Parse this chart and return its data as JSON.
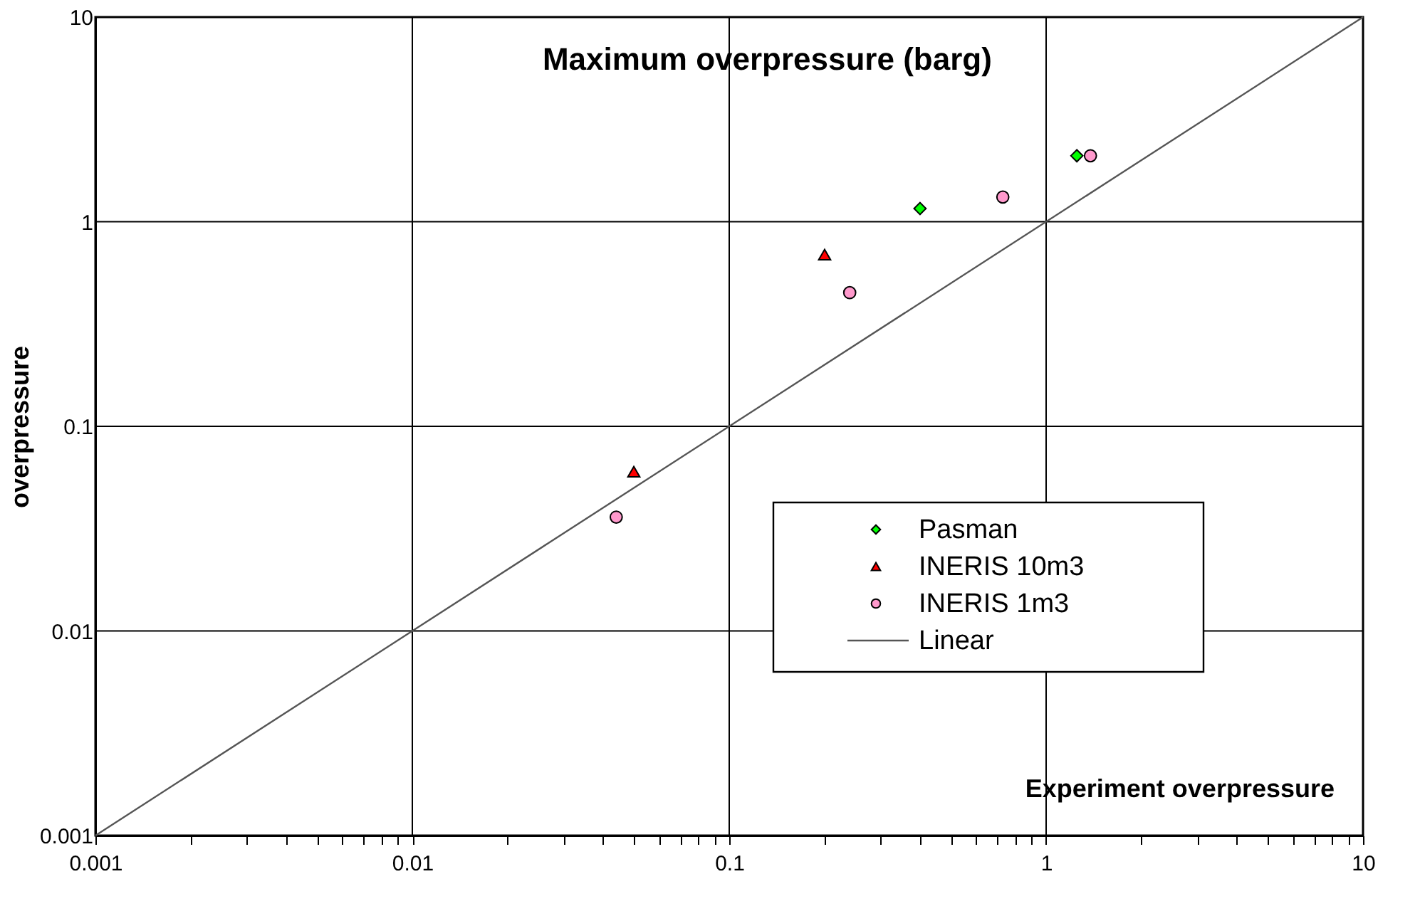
{
  "chart_data": {
    "type": "scatter",
    "title": "Maximum overpressure (barg)",
    "xlabel": "Experiment overpressure",
    "ylabel": "overpressure",
    "xlim": [
      0.001,
      10
    ],
    "ylim": [
      0.001,
      10
    ],
    "xticks": [
      0.001,
      {
        "value": 0.002,
        "label": null
      },
      {
        "value": 0.003,
        "label": null
      },
      {
        "value": 0.004,
        "label": null
      },
      {
        "value": 0.005,
        "label": null
      },
      {
        "value": 0.006,
        "label": null
      },
      {
        "value": 0.007,
        "label": null
      },
      {
        "value": 0.008,
        "label": null
      },
      {
        "value": 0.009,
        "label": null
      },
      0.01,
      {
        "value": 0.02,
        "label": null
      },
      {
        "value": 0.03,
        "label": null
      },
      {
        "value": 0.04,
        "label": null
      },
      {
        "value": 0.05,
        "label": null
      },
      {
        "value": 0.06,
        "label": null
      },
      {
        "value": 0.07,
        "label": null
      },
      {
        "value": 0.08,
        "label": null
      },
      {
        "value": 0.09,
        "label": null
      },
      0.1,
      {
        "value": 0.2,
        "label": null
      },
      {
        "value": 0.3,
        "label": null
      },
      {
        "value": 0.4,
        "label": null
      },
      {
        "value": 0.5,
        "label": null
      },
      {
        "value": 0.6,
        "label": null
      },
      {
        "value": 0.7,
        "label": null
      },
      {
        "value": 0.8,
        "label": null
      },
      {
        "value": 0.9,
        "label": null
      },
      1,
      {
        "value": 2,
        "label": null
      },
      {
        "value": 3,
        "label": null
      },
      {
        "value": 4,
        "label": null
      },
      {
        "value": 5,
        "label": null
      },
      {
        "value": 6,
        "label": null
      },
      {
        "value": 7,
        "label": null
      },
      {
        "value": 8,
        "label": null
      },
      {
        "value": 9,
        "label": null
      },
      10
    ],
    "yticks": [
      0.001,
      0.01,
      0.1,
      1,
      10
    ],
    "log": "xy",
    "grid": true,
    "legend": "bottom right",
    "series": [
      {
        "name": "Pasman",
        "color": "#00ff00",
        "marker": "diamond",
        "x": [
          0.4,
          1.25
        ],
        "values": [
          1.16,
          2.1
        ]
      },
      {
        "name": "INERIS 10m3",
        "color": "#ff0000",
        "marker": "triangle",
        "x": [
          0.2,
          0.05
        ],
        "values": [
          0.69,
          0.06
        ]
      },
      {
        "name": "INERIS 1m3",
        "color": "#ff99cc",
        "marker": "circle",
        "x": [
          1.38,
          0.73,
          0.24,
          0.044
        ],
        "values": [
          2.1,
          1.32,
          0.45,
          0.036
        ]
      },
      {
        "name": "Linear",
        "type": "line",
        "color": "#555555",
        "x": [
          0.001,
          10
        ],
        "values": [
          0.001,
          10
        ]
      }
    ]
  }
}
